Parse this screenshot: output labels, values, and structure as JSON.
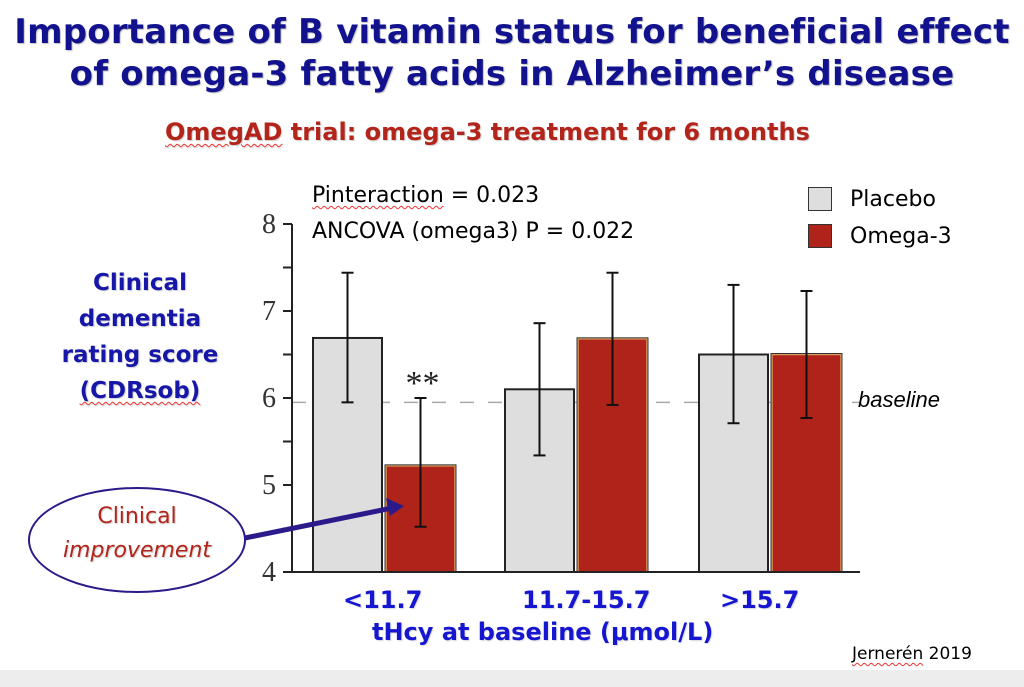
{
  "slide": {
    "title_line1": "Importance of B vitamin status for beneficial effect",
    "title_line2": "of omega-3 fatty acids in Alzheimer’s disease",
    "subtitle_prefix": "OmegAD",
    "subtitle_rest": " trial: omega-3 treatment for 6 months",
    "stat_interaction_label": "Pinteraction",
    "stat_interaction_value": " = 0.023",
    "stat_ancova": "ANCOVA (omega3) P = 0.022",
    "callout_line1": "Clinical",
    "callout_line2": "improvement",
    "credit_name": "Jernerén",
    "credit_year": " 2019",
    "colors": {
      "title": "#12128f",
      "subtitle": "#b3241a",
      "placebo": "#dedede",
      "omega3": "#b0231a",
      "axis_labels": "#1616d0",
      "arrow": "#2a1a8a"
    }
  },
  "chart_data": {
    "type": "bar",
    "title": "OmegAD trial: omega-3 treatment for 6 months",
    "ylabel_lines": [
      "Clinical",
      "dementia",
      "rating score",
      "(CDRsob)"
    ],
    "xlabel": "tHcy at baseline (μmol/L)",
    "categories": [
      "<11.7",
      "11.7-15.7",
      ">15.7"
    ],
    "ylim": [
      4,
      8
    ],
    "yticks": [
      4,
      5,
      6,
      7,
      8
    ],
    "ytick_labels": [
      "4",
      "5",
      "6",
      "7",
      "8"
    ],
    "grid": false,
    "legend_position": "top-right",
    "series": [
      {
        "name": "Placebo",
        "color": "#dedede",
        "values": [
          6.69,
          6.1,
          6.5
        ],
        "err_low": [
          5.95,
          5.34,
          5.71
        ],
        "err_high": [
          7.44,
          6.86,
          7.3
        ]
      },
      {
        "name": "Omega-3",
        "color": "#b0231a",
        "values": [
          5.22,
          6.68,
          6.5
        ],
        "err_low": [
          4.52,
          5.92,
          5.77
        ],
        "err_high": [
          6.0,
          7.44,
          7.23
        ]
      }
    ],
    "reference_line": {
      "label": "baseline",
      "value": 5.95
    },
    "annotations": [
      {
        "text": "**",
        "category": "<11.7",
        "series": "Omega-3"
      }
    ]
  }
}
